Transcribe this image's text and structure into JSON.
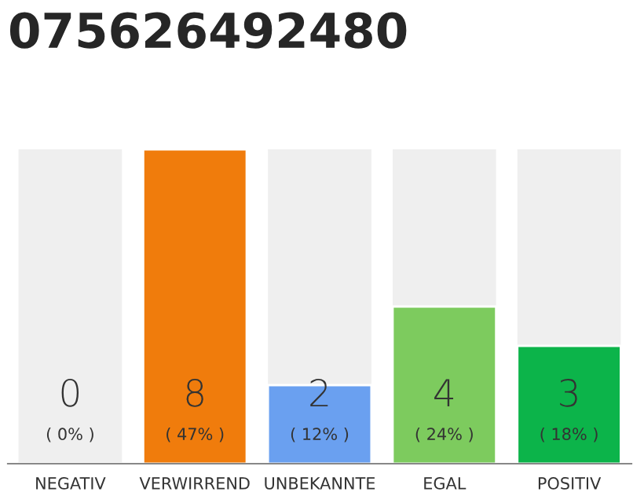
{
  "chart_data": {
    "type": "bar",
    "title": "075626492480",
    "categories": [
      "NEGATIV",
      "VERWIRREND",
      "UNBEKANNTE",
      "EGAL",
      "POSITIV"
    ],
    "values": [
      0,
      8,
      2,
      4,
      3
    ],
    "colors": [
      null,
      "#f07c0c",
      "#6aa0f0",
      "#7dcb5e",
      "#0cb44a"
    ],
    "value_labels": [
      "0\n( 0% )",
      "8\n( 47% )",
      "2\n( 12% )",
      "4\n( 24% )",
      "3\n( 18% )"
    ],
    "grid": false,
    "legend": false
  }
}
